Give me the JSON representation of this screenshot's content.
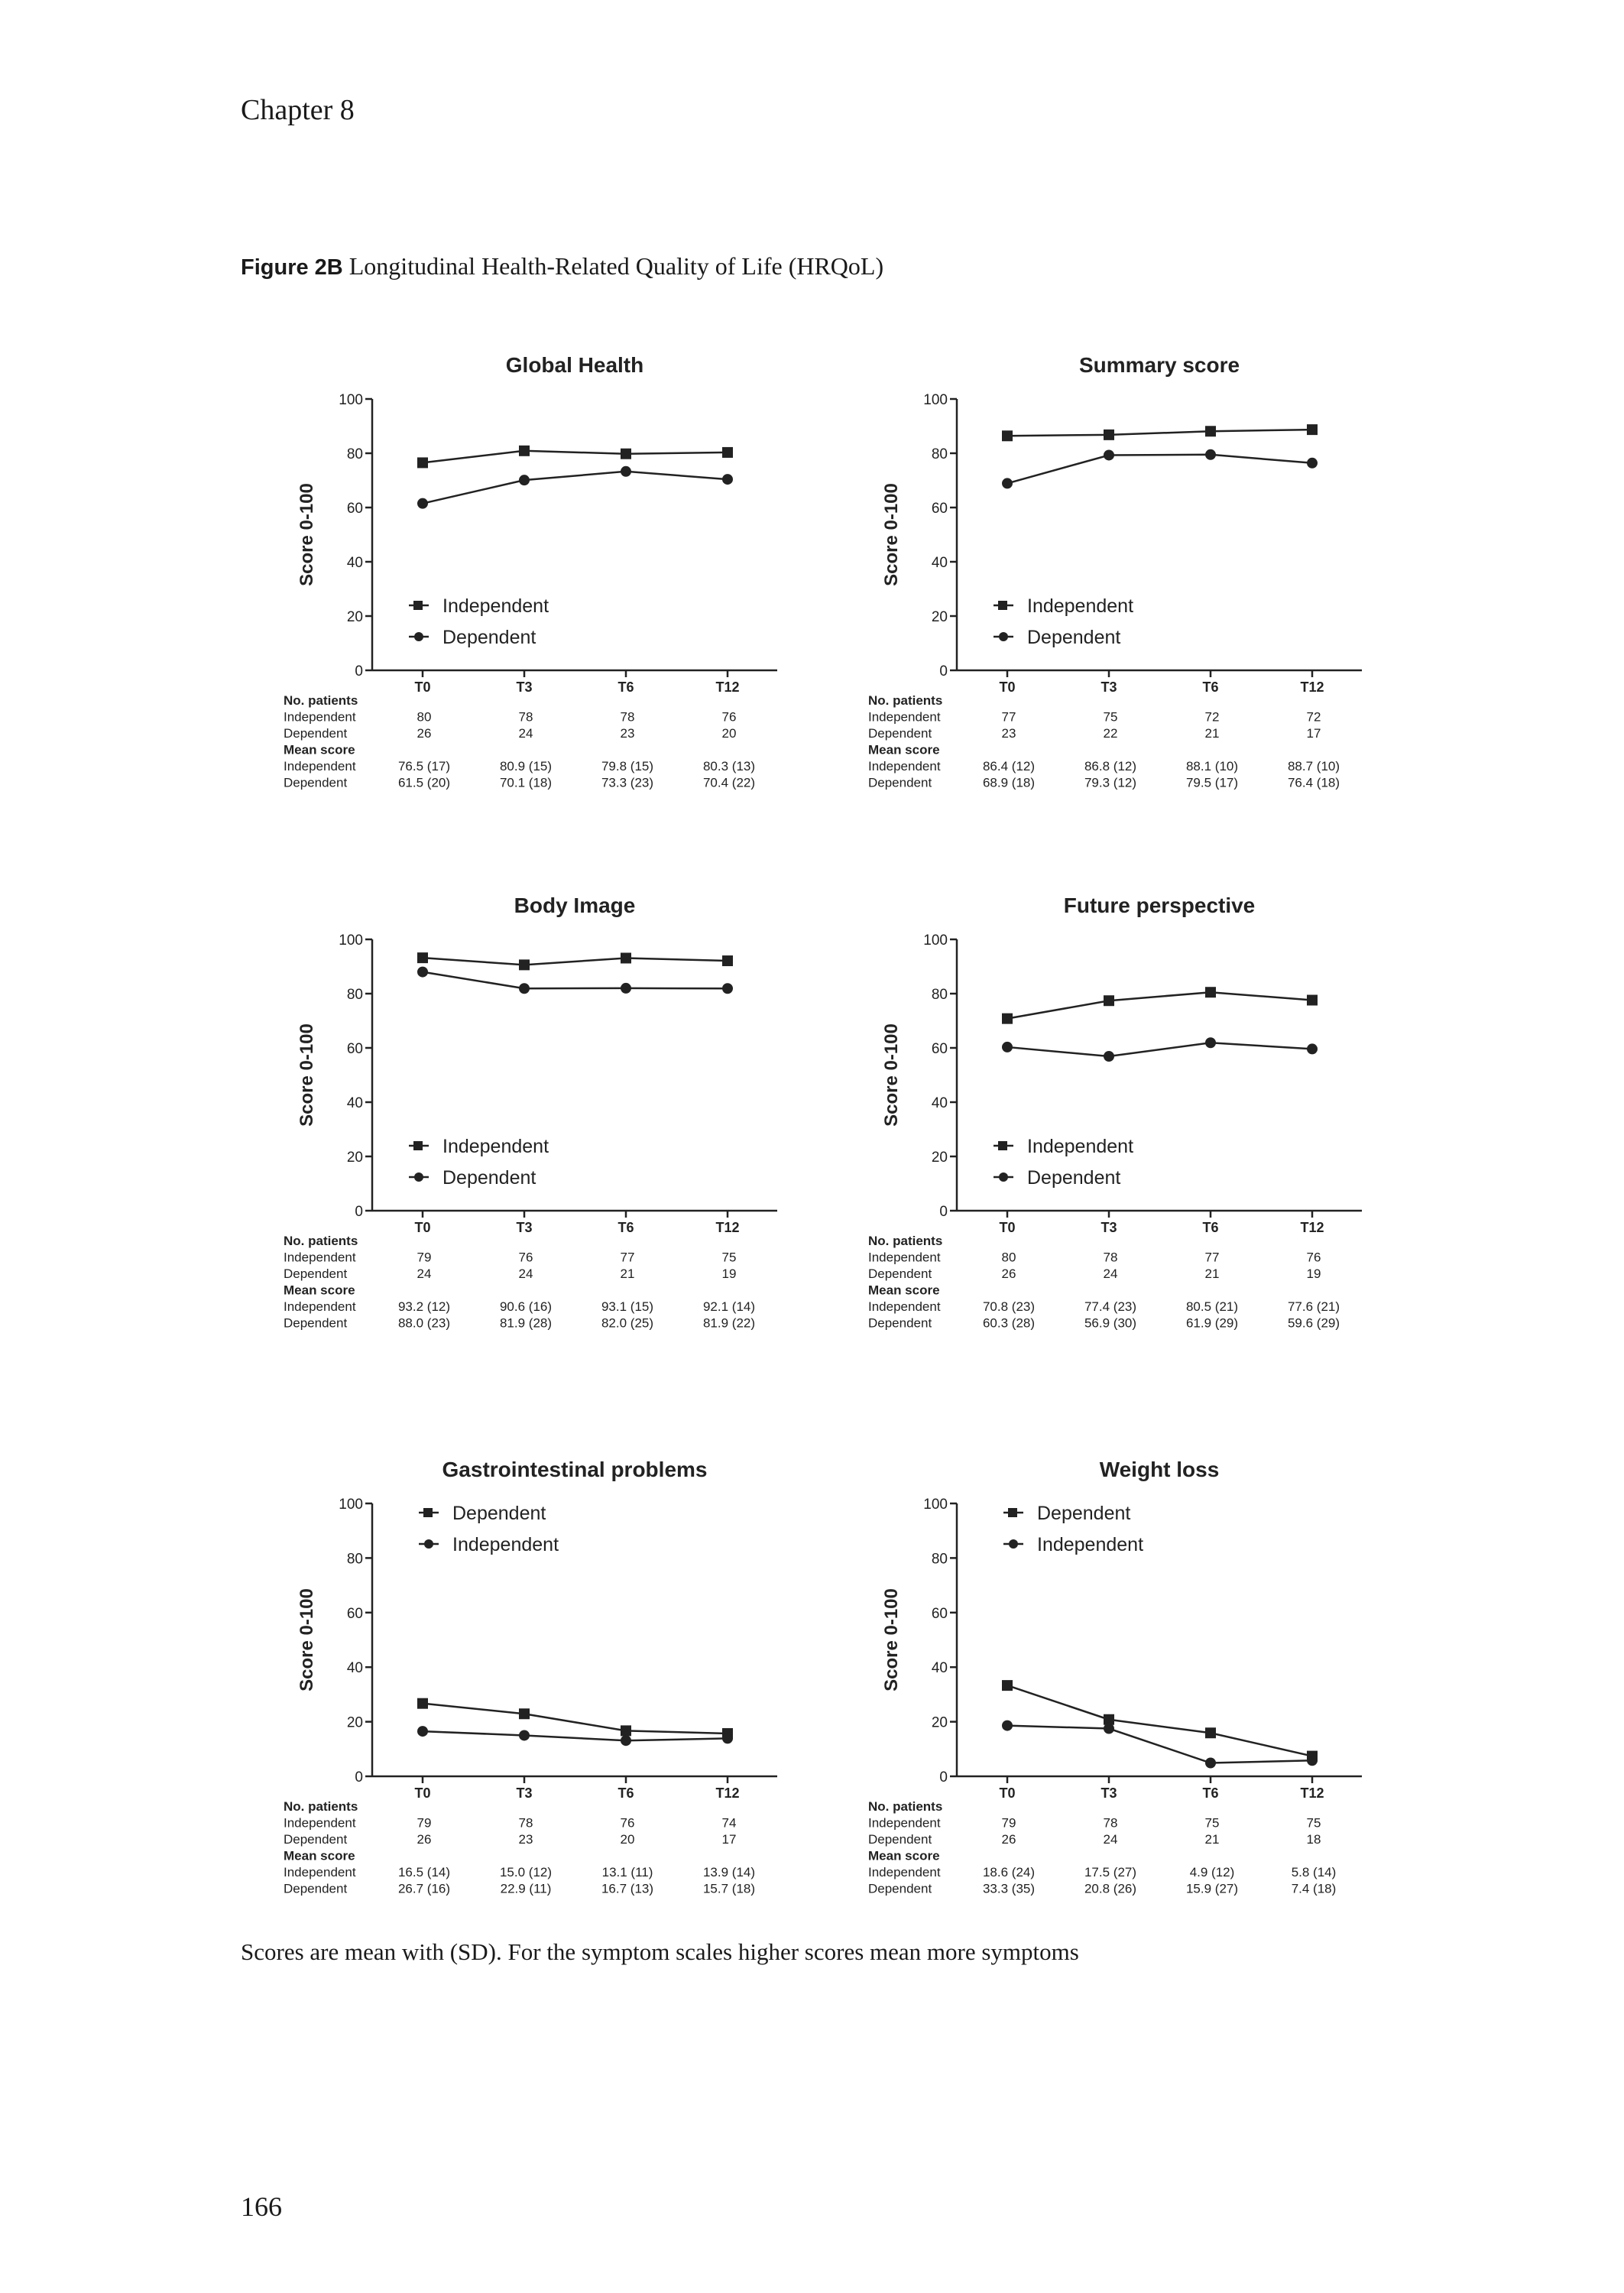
{
  "header": {
    "chapter": "Chapter 8"
  },
  "figure": {
    "label": "Figure 2B",
    "title": "Longitudinal Health-Related Quality of Life (HRQoL)"
  },
  "footnote": "Scores are mean with (SD). For the symptom scales higher scores mean more symptoms",
  "page_number": "166",
  "table_labels": {
    "no_patients": "No. patients",
    "mean_score": "Mean score",
    "independent": "Independent",
    "dependent": "Dependent"
  },
  "chart_data": [
    {
      "type": "line",
      "title": "Global Health",
      "ylabel": "Score 0-100",
      "ylim": [
        0,
        100
      ],
      "yticks": [
        0,
        20,
        40,
        60,
        80,
        100
      ],
      "categories": [
        "T0",
        "T3",
        "T6",
        "T12"
      ],
      "legend_position": "bottom-left",
      "series": [
        {
          "name": "Independent",
          "marker": "square",
          "values": [
            76.5,
            80.9,
            79.8,
            80.3
          ]
        },
        {
          "name": "Dependent",
          "marker": "circle",
          "values": [
            61.5,
            70.1,
            73.3,
            70.4
          ]
        }
      ],
      "table": {
        "n_independent": [
          "80",
          "78",
          "78",
          "76"
        ],
        "n_dependent": [
          "26",
          "24",
          "23",
          "20"
        ],
        "mean_independent": [
          "76.5 (17)",
          "80.9 (15)",
          "79.8 (15)",
          "80.3 (13)"
        ],
        "mean_dependent": [
          "61.5 (20)",
          "70.1 (18)",
          "73.3 (23)",
          "70.4 (22)"
        ]
      }
    },
    {
      "type": "line",
      "title": "Summary score",
      "ylabel": "Score 0-100",
      "ylim": [
        0,
        100
      ],
      "yticks": [
        0,
        20,
        40,
        60,
        80,
        100
      ],
      "categories": [
        "T0",
        "T3",
        "T6",
        "T12"
      ],
      "legend_position": "bottom-left",
      "series": [
        {
          "name": "Independent",
          "marker": "square",
          "values": [
            86.4,
            86.8,
            88.1,
            88.7
          ]
        },
        {
          "name": "Dependent",
          "marker": "circle",
          "values": [
            68.9,
            79.3,
            79.5,
            76.4
          ]
        }
      ],
      "table": {
        "n_independent": [
          "77",
          "75",
          "72",
          "72"
        ],
        "n_dependent": [
          "23",
          "22",
          "21",
          "17"
        ],
        "mean_independent": [
          "86.4 (12)",
          "86.8 (12)",
          "88.1 (10)",
          "88.7 (10)"
        ],
        "mean_dependent": [
          "68.9 (18)",
          "79.3 (12)",
          "79.5 (17)",
          "76.4 (18)"
        ]
      }
    },
    {
      "type": "line",
      "title": "Body Image",
      "ylabel": "Score 0-100",
      "ylim": [
        0,
        100
      ],
      "yticks": [
        0,
        20,
        40,
        60,
        80,
        100
      ],
      "categories": [
        "T0",
        "T3",
        "T6",
        "T12"
      ],
      "legend_position": "bottom-left",
      "series": [
        {
          "name": "Independent",
          "marker": "square",
          "values": [
            93.2,
            90.6,
            93.1,
            92.1
          ]
        },
        {
          "name": "Dependent",
          "marker": "circle",
          "values": [
            88.0,
            81.9,
            82.0,
            81.9
          ]
        }
      ],
      "table": {
        "n_independent": [
          "79",
          "76",
          "77",
          "75"
        ],
        "n_dependent": [
          "24",
          "24",
          "21",
          "19"
        ],
        "mean_independent": [
          "93.2 (12)",
          "90.6 (16)",
          "93.1 (15)",
          "92.1 (14)"
        ],
        "mean_dependent": [
          "88.0 (23)",
          "81.9 (28)",
          "82.0 (25)",
          "81.9 (22)"
        ]
      }
    },
    {
      "type": "line",
      "title": "Future perspective",
      "ylabel": "Score 0-100",
      "ylim": [
        0,
        100
      ],
      "yticks": [
        0,
        20,
        40,
        60,
        80,
        100
      ],
      "categories": [
        "T0",
        "T3",
        "T6",
        "T12"
      ],
      "legend_position": "bottom-left",
      "series": [
        {
          "name": "Independent",
          "marker": "square",
          "values": [
            70.8,
            77.4,
            80.5,
            77.6
          ]
        },
        {
          "name": "Dependent",
          "marker": "circle",
          "values": [
            60.3,
            56.9,
            61.9,
            59.6
          ]
        }
      ],
      "table": {
        "n_independent": [
          "80",
          "78",
          "77",
          "76"
        ],
        "n_dependent": [
          "26",
          "24",
          "21",
          "19"
        ],
        "mean_independent": [
          "70.8 (23)",
          "77.4 (23)",
          "80.5 (21)",
          "77.6 (21)"
        ],
        "mean_dependent": [
          "60.3 (28)",
          "56.9 (30)",
          "61.9 (29)",
          "59.6 (29)"
        ]
      }
    },
    {
      "type": "line",
      "title": "Gastrointestinal problems",
      "ylabel": "Score 0-100",
      "ylim": [
        0,
        100
      ],
      "yticks": [
        0,
        20,
        40,
        60,
        80,
        100
      ],
      "categories": [
        "T0",
        "T3",
        "T6",
        "T12"
      ],
      "legend_position": "top-left",
      "series": [
        {
          "name": "Dependent",
          "marker": "square",
          "values": [
            26.7,
            22.9,
            16.7,
            15.7
          ]
        },
        {
          "name": "Independent",
          "marker": "circle",
          "values": [
            16.5,
            15.0,
            13.1,
            13.9
          ]
        }
      ],
      "table": {
        "n_independent": [
          "79",
          "78",
          "76",
          "74"
        ],
        "n_dependent": [
          "26",
          "23",
          "20",
          "17"
        ],
        "mean_independent": [
          "16.5 (14)",
          "15.0 (12)",
          "13.1 (11)",
          "13.9 (14)"
        ],
        "mean_dependent": [
          "26.7 (16)",
          "22.9 (11)",
          "16.7 (13)",
          "15.7 (18)"
        ]
      }
    },
    {
      "type": "line",
      "title": "Weight loss",
      "ylabel": "Score 0-100",
      "ylim": [
        0,
        100
      ],
      "yticks": [
        0,
        20,
        40,
        60,
        80,
        100
      ],
      "categories": [
        "T0",
        "T3",
        "T6",
        "T12"
      ],
      "legend_position": "top-left",
      "series": [
        {
          "name": "Dependent",
          "marker": "square",
          "values": [
            33.3,
            20.8,
            15.9,
            7.4
          ]
        },
        {
          "name": "Independent",
          "marker": "circle",
          "values": [
            18.6,
            17.5,
            4.9,
            5.8
          ]
        }
      ],
      "table": {
        "n_independent": [
          "79",
          "78",
          "75",
          "75"
        ],
        "n_dependent": [
          "26",
          "24",
          "21",
          "18"
        ],
        "mean_independent": [
          "18.6 (24)",
          "17.5 (27)",
          "4.9 (12)",
          "5.8 (14)"
        ],
        "mean_dependent": [
          "33.3 (35)",
          "20.8 (26)",
          "15.9 (27)",
          "7.4 (18)"
        ]
      }
    }
  ]
}
